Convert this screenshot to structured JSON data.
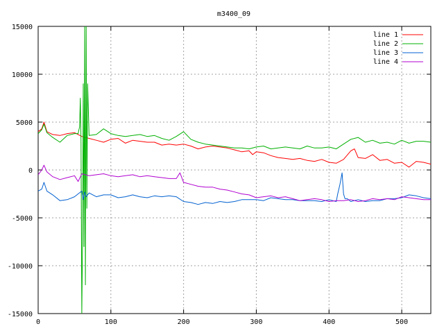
{
  "chart_data": {
    "type": "line",
    "title": "m3400_09",
    "xlabel": "",
    "ylabel": "",
    "xlim": [
      0,
      540
    ],
    "ylim": [
      -15000,
      15000
    ],
    "xticks": [
      0,
      100,
      200,
      300,
      400,
      500
    ],
    "yticks": [
      -15000,
      -10000,
      -5000,
      0,
      5000,
      10000,
      15000
    ],
    "grid": true,
    "legend_position": "top-right",
    "series": [
      {
        "name": "line 1",
        "color": "#ff0000",
        "x": [
          0,
          5,
          8,
          12,
          20,
          30,
          40,
          50,
          55,
          60,
          70,
          80,
          90,
          100,
          110,
          120,
          130,
          140,
          150,
          160,
          170,
          180,
          190,
          200,
          210,
          220,
          230,
          240,
          250,
          260,
          270,
          280,
          290,
          295,
          300,
          310,
          320,
          330,
          340,
          350,
          360,
          370,
          380,
          390,
          400,
          410,
          420,
          430,
          435,
          440,
          450,
          460,
          470,
          480,
          490,
          500,
          510,
          520,
          530,
          540
        ],
        "y": [
          4000,
          4300,
          5000,
          4000,
          3700,
          3600,
          3800,
          3900,
          3700,
          3500,
          3300,
          3100,
          2900,
          3200,
          3300,
          2800,
          3100,
          3000,
          2900,
          2900,
          2600,
          2700,
          2600,
          2700,
          2500,
          2200,
          2400,
          2500,
          2400,
          2300,
          2100,
          1900,
          2000,
          1600,
          1900,
          1800,
          1500,
          1300,
          1200,
          1100,
          1200,
          1000,
          900,
          1100,
          800,
          700,
          1100,
          2000,
          2200,
          1300,
          1200,
          1600,
          1000,
          1100,
          700,
          800,
          300,
          900,
          800,
          600
        ]
      },
      {
        "name": "line 2",
        "color": "#00b000",
        "x": [
          0,
          5,
          8,
          12,
          20,
          30,
          40,
          50,
          55,
          57,
          58,
          59,
          60,
          61,
          62,
          63,
          64,
          65,
          66,
          67,
          68,
          70,
          80,
          90,
          100,
          110,
          120,
          130,
          140,
          150,
          160,
          170,
          180,
          190,
          200,
          210,
          220,
          230,
          240,
          250,
          260,
          270,
          280,
          290,
          300,
          310,
          320,
          330,
          340,
          350,
          360,
          370,
          380,
          390,
          400,
          410,
          420,
          430,
          440,
          450,
          460,
          470,
          480,
          490,
          500,
          510,
          520,
          530,
          540
        ],
        "y": [
          3800,
          4200,
          4800,
          3900,
          3400,
          2900,
          3600,
          3800,
          3800,
          4500,
          7500,
          3000,
          -15000,
          -8000,
          9000,
          -8000,
          15000,
          -12000,
          15000,
          -4000,
          9000,
          3600,
          3700,
          4300,
          3800,
          3600,
          3500,
          3600,
          3700,
          3500,
          3600,
          3300,
          3100,
          3500,
          4000,
          3200,
          2900,
          2700,
          2600,
          2500,
          2400,
          2300,
          2300,
          2200,
          2400,
          2500,
          2200,
          2300,
          2400,
          2300,
          2200,
          2500,
          2300,
          2300,
          2400,
          2200,
          2700,
          3200,
          3400,
          2900,
          3100,
          2800,
          2900,
          2700,
          3100,
          2800,
          3000,
          3000,
          2900
        ]
      },
      {
        "name": "line 3",
        "color": "#0060d0",
        "x": [
          0,
          5,
          8,
          12,
          20,
          30,
          40,
          50,
          55,
          60,
          62,
          64,
          66,
          70,
          80,
          90,
          100,
          110,
          120,
          130,
          140,
          150,
          160,
          170,
          180,
          190,
          200,
          210,
          220,
          230,
          240,
          250,
          260,
          270,
          280,
          290,
          300,
          310,
          320,
          330,
          340,
          350,
          360,
          370,
          380,
          390,
          400,
          410,
          412,
          415,
          418,
          420,
          422,
          425,
          430,
          440,
          450,
          460,
          470,
          480,
          490,
          500,
          510,
          520,
          530,
          540
        ],
        "y": [
          -2200,
          -2000,
          -1300,
          -2200,
          -2600,
          -3200,
          -3100,
          -2800,
          -2500,
          -2200,
          -3100,
          -2300,
          -2800,
          -2400,
          -2800,
          -2600,
          -2600,
          -2900,
          -2800,
          -2600,
          -2800,
          -2900,
          -2700,
          -2800,
          -2700,
          -2800,
          -3300,
          -3400,
          -3600,
          -3400,
          -3500,
          -3300,
          -3400,
          -3300,
          -3100,
          -3100,
          -3100,
          -3200,
          -2900,
          -3000,
          -3100,
          -3100,
          -3200,
          -3200,
          -3200,
          -3300,
          -3100,
          -3300,
          -2500,
          -1500,
          -300,
          -2500,
          -3000,
          -3000,
          -3300,
          -3100,
          -3300,
          -3200,
          -3200,
          -3000,
          -3000,
          -2900,
          -2600,
          -2700,
          -2900,
          -3000
        ]
      },
      {
        "name": "line 4",
        "color": "#b000d0",
        "x": [
          0,
          5,
          8,
          12,
          20,
          30,
          40,
          50,
          55,
          60,
          70,
          80,
          90,
          100,
          110,
          120,
          130,
          140,
          150,
          160,
          170,
          180,
          190,
          195,
          200,
          210,
          220,
          230,
          240,
          250,
          260,
          270,
          280,
          290,
          300,
          310,
          320,
          330,
          340,
          350,
          360,
          370,
          380,
          390,
          400,
          410,
          420,
          430,
          440,
          450,
          460,
          470,
          480,
          490,
          500,
          510,
          520,
          530,
          540
        ],
        "y": [
          -500,
          0,
          500,
          -200,
          -700,
          -1000,
          -800,
          -600,
          -1200,
          -400,
          -600,
          -500,
          -400,
          -600,
          -700,
          -600,
          -500,
          -700,
          -600,
          -700,
          -800,
          -900,
          -900,
          -300,
          -1300,
          -1500,
          -1700,
          -1800,
          -1800,
          -2000,
          -2100,
          -2300,
          -2500,
          -2600,
          -2900,
          -2800,
          -2700,
          -2900,
          -2800,
          -3000,
          -3200,
          -3100,
          -3000,
          -3100,
          -3300,
          -3200,
          -3200,
          -3100,
          -3300,
          -3200,
          -3000,
          -3100,
          -3000,
          -3100,
          -2800,
          -2900,
          -3000,
          -3100,
          -3100
        ]
      }
    ]
  }
}
